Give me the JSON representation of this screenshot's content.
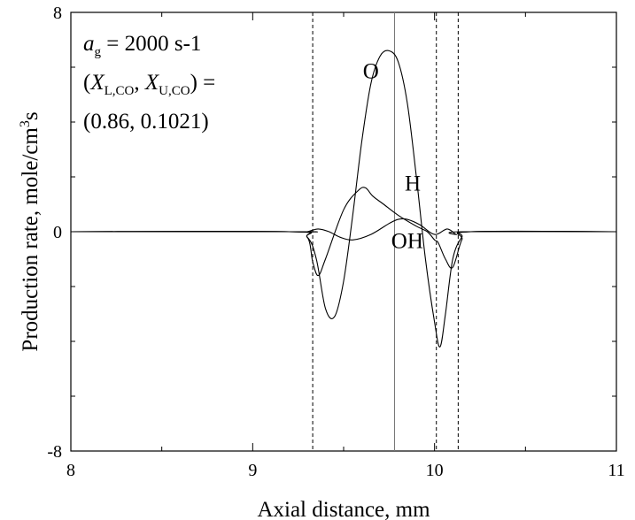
{
  "chart_data": {
    "type": "line",
    "xlabel": "Axial distance, mm",
    "ylabel": "Production rate, mole/cm³s",
    "xlim": [
      8,
      11
    ],
    "ylim": [
      -8,
      8
    ],
    "x_ticks": [
      "8",
      "9",
      "10",
      "11"
    ],
    "y_ticks": [
      "8",
      "0",
      "-8"
    ],
    "grid": false,
    "annotation": {
      "line1_italic": "a",
      "line1_sub": "g",
      "line1_rest": " = 2000 s-1",
      "line2_open": "(",
      "line2_x1": "X",
      "line2_sub1": "L,CO",
      "line2_sep": ", ",
      "line2_x2": "X",
      "line2_sub2": "U,CO",
      "line2_close": ") =",
      "line3": "(0.86, 0.1021)"
    },
    "vertical_lines": [
      {
        "x": 9.33,
        "style": "dashed"
      },
      {
        "x": 9.78,
        "style": "solid"
      },
      {
        "x": 10.01,
        "style": "dashed"
      },
      {
        "x": 10.13,
        "style": "dashed"
      }
    ],
    "series": [
      {
        "name": "O",
        "x": [
          8.0,
          9.2,
          9.3,
          9.35,
          9.4,
          9.45,
          9.5,
          9.55,
          9.6,
          9.65,
          9.7,
          9.75,
          9.8,
          9.85,
          9.9,
          9.95,
          10.0,
          10.03,
          10.06,
          10.1,
          10.15,
          10.2,
          11.0
        ],
        "y": [
          0,
          0,
          -0.2,
          -1.0,
          -2.8,
          -3.1,
          -1.8,
          0.6,
          3.3,
          5.4,
          6.4,
          6.6,
          6.2,
          4.7,
          2.0,
          -1.0,
          -3.3,
          -4.2,
          -3.0,
          -1.0,
          -0.2,
          0,
          0
        ]
      },
      {
        "name": "H",
        "x": [
          8.0,
          9.2,
          9.3,
          9.33,
          9.36,
          9.4,
          9.5,
          9.58,
          9.62,
          9.66,
          9.72,
          9.8,
          9.9,
          9.96,
          10.0,
          10.02,
          10.06,
          10.1,
          10.15,
          10.2,
          11.0
        ],
        "y": [
          0,
          0,
          -0.2,
          -1.1,
          -1.6,
          -1.0,
          0.8,
          1.5,
          1.6,
          1.3,
          1.0,
          0.6,
          0.2,
          0.0,
          -0.3,
          -0.4,
          -1.0,
          -1.3,
          -0.3,
          0,
          0
        ]
      },
      {
        "name": "OH",
        "x": [
          8.0,
          9.25,
          9.3,
          9.36,
          9.42,
          9.48,
          9.55,
          9.65,
          9.75,
          9.8,
          9.85,
          9.92,
          10.0,
          10.07,
          10.12,
          10.15,
          11.0
        ],
        "y": [
          0,
          0,
          0.0,
          0.1,
          0.0,
          -0.2,
          -0.3,
          -0.1,
          0.3,
          0.45,
          0.45,
          0.25,
          -0.1,
          0.1,
          -0.1,
          0,
          0
        ]
      }
    ],
    "series_labels": [
      {
        "name": "O",
        "x": 9.65,
        "y": 5.6
      },
      {
        "name": "H",
        "x": 9.88,
        "y": 1.5
      },
      {
        "name": "OH",
        "x": 9.85,
        "y": -0.6
      }
    ]
  }
}
